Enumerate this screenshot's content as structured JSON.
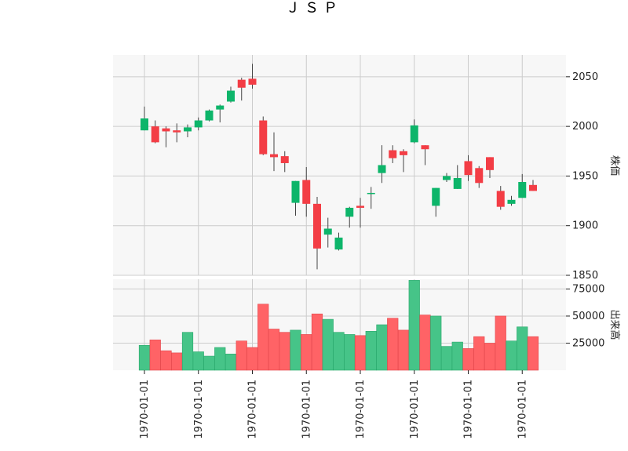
{
  "chart_data": {
    "type": "candlestick",
    "title": "ＪＳＰ",
    "x_tick_label": "1970-01-01",
    "x_tick_labels": [
      "1970-01-01",
      "1970-01-01",
      "1970-01-01",
      "1970-01-01",
      "1970-01-01",
      "1970-01-01",
      "1970-01-01",
      "1970-01-01"
    ],
    "price_panel": {
      "ylabel": "株価",
      "ylim": [
        1850,
        2072
      ],
      "yticks": [
        1850,
        1900,
        1950,
        2000,
        2050
      ],
      "candles": [
        {
          "open": 1996,
          "high": 2020,
          "low": 1996,
          "close": 2008
        },
        {
          "open": 2000,
          "high": 2006,
          "low": 1983,
          "close": 1984
        },
        {
          "open": 1998,
          "high": 2000,
          "low": 1979,
          "close": 1995
        },
        {
          "open": 1996,
          "high": 2003,
          "low": 1984,
          "close": 1994
        },
        {
          "open": 1995,
          "high": 2002,
          "low": 1989,
          "close": 1999
        },
        {
          "open": 1999,
          "high": 2009,
          "low": 1996,
          "close": 2006
        },
        {
          "open": 2006,
          "high": 2017,
          "low": 2005,
          "close": 2016
        },
        {
          "open": 2017,
          "high": 2022,
          "low": 2004,
          "close": 2021
        },
        {
          "open": 2025,
          "high": 2040,
          "low": 2024,
          "close": 2036
        },
        {
          "open": 2047,
          "high": 2049,
          "low": 2026,
          "close": 2039
        },
        {
          "open": 2048,
          "high": 2063,
          "low": 2038,
          "close": 2042
        },
        {
          "open": 2006,
          "high": 2010,
          "low": 1971,
          "close": 1972
        },
        {
          "open": 1972,
          "high": 1994,
          "low": 1955,
          "close": 1969
        },
        {
          "open": 1970,
          "high": 1975,
          "low": 1954,
          "close": 1963
        },
        {
          "open": 1923,
          "high": 1945,
          "low": 1910,
          "close": 1945
        },
        {
          "open": 1946,
          "high": 1959,
          "low": 1909,
          "close": 1922
        },
        {
          "open": 1922,
          "high": 1929,
          "low": 1856,
          "close": 1877
        },
        {
          "open": 1891,
          "high": 1908,
          "low": 1878,
          "close": 1897
        },
        {
          "open": 1876,
          "high": 1893,
          "low": 1875,
          "close": 1888
        },
        {
          "open": 1909,
          "high": 1919,
          "low": 1898,
          "close": 1918
        },
        {
          "open": 1920,
          "high": 1928,
          "low": 1898,
          "close": 1918
        },
        {
          "open": 1932,
          "high": 1939,
          "low": 1917,
          "close": 1933
        },
        {
          "open": 1953,
          "high": 1981,
          "low": 1943,
          "close": 1961
        },
        {
          "open": 1976,
          "high": 1981,
          "low": 1963,
          "close": 1968
        },
        {
          "open": 1975,
          "high": 1977,
          "low": 1954,
          "close": 1971
        },
        {
          "open": 1984,
          "high": 2007,
          "low": 1983,
          "close": 2001
        },
        {
          "open": 1981,
          "high": 1981,
          "low": 1961,
          "close": 1977
        },
        {
          "open": 1920,
          "high": 1938,
          "low": 1909,
          "close": 1938
        },
        {
          "open": 1946,
          "high": 1953,
          "low": 1944,
          "close": 1950
        },
        {
          "open": 1937,
          "high": 1961,
          "low": 1937,
          "close": 1948
        },
        {
          "open": 1965,
          "high": 1971,
          "low": 1945,
          "close": 1951
        },
        {
          "open": 1958,
          "high": 1960,
          "low": 1938,
          "close": 1943
        },
        {
          "open": 1969,
          "high": 1969,
          "low": 1948,
          "close": 1956
        },
        {
          "open": 1935,
          "high": 1940,
          "low": 1916,
          "close": 1919
        },
        {
          "open": 1922,
          "high": 1930,
          "low": 1920,
          "close": 1926
        },
        {
          "open": 1928,
          "high": 1952,
          "low": 1928,
          "close": 1944
        },
        {
          "open": 1941,
          "high": 1946,
          "low": 1935,
          "close": 1935
        }
      ]
    },
    "volume_panel": {
      "ylabel": "出来高",
      "ylim": [
        0,
        84000
      ],
      "yticks": [
        25000,
        50000,
        75000
      ],
      "volumes": [
        23000,
        28000,
        18000,
        16000,
        35000,
        17000,
        13000,
        21000,
        15000,
        27000,
        21000,
        61000,
        38000,
        35000,
        37000,
        33000,
        52000,
        47000,
        35000,
        33000,
        32000,
        36000,
        42000,
        48000,
        37000,
        83000,
        51000,
        50000,
        22000,
        26000,
        20000,
        31000,
        25000,
        50000,
        27000,
        40000,
        31000
      ]
    },
    "colors": {
      "up": "#0db56a",
      "down": "#f33d45",
      "volume_up": "#46c488",
      "volume_down": "#ff6366",
      "panel_bg": "#f7f7f7",
      "grid": "#cccccc",
      "wick": "#444444"
    }
  }
}
